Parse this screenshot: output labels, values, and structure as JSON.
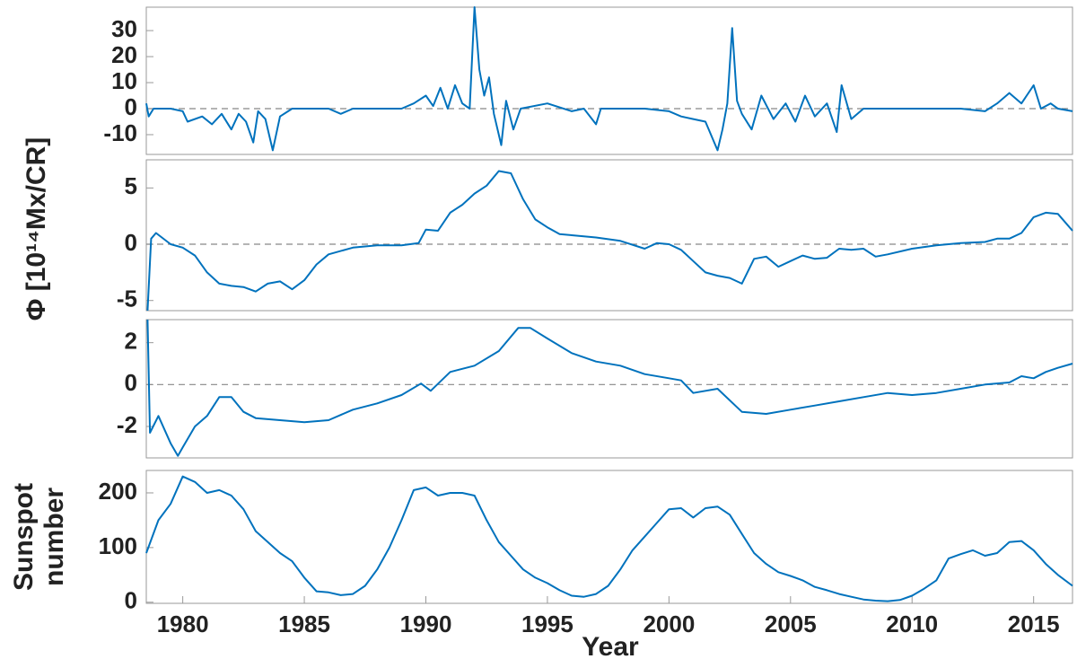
{
  "chart_data": [
    {
      "type": "line",
      "ylabel": "Φ [10¹⁴Mx/CR]",
      "hline": 0,
      "xlim": [
        1978.5,
        2016.6
      ],
      "ylim": [
        -17.6,
        39
      ],
      "yticks": [
        -10,
        0,
        10,
        20,
        30
      ],
      "x": [
        1978.5,
        1978.6,
        1978.8,
        1979.5,
        1980,
        1980.2,
        1980.8,
        1981.2,
        1981.6,
        1982,
        1982.3,
        1982.6,
        1982.9,
        1983.1,
        1983.4,
        1983.7,
        1984,
        1984.5,
        1986,
        1986.5,
        1987,
        1989,
        1989.5,
        1990,
        1990.3,
        1990.6,
        1990.9,
        1991.2,
        1991.5,
        1991.8,
        1992,
        1992.2,
        1992.4,
        1992.6,
        1992.8,
        1993.1,
        1993.3,
        1993.6,
        1993.9,
        1995,
        1996,
        1996.5,
        1997,
        1997.2,
        1999,
        2000,
        2000.5,
        2001,
        2001.5,
        2002,
        2002.2,
        2002.4,
        2002.6,
        2002.8,
        2003,
        2003.4,
        2003.8,
        2004.3,
        2004.8,
        2005.2,
        2005.6,
        2006,
        2006.5,
        2006.9,
        2007.1,
        2007.5,
        2008,
        2012,
        2013,
        2013.5,
        2014,
        2014.5,
        2015,
        2015.3,
        2015.7,
        2016,
        2016.6
      ],
      "series": [
        {
          "color": "#0072bd",
          "values": [
            2,
            -3,
            0,
            0,
            -1,
            -5,
            -3,
            -6,
            -2,
            -8,
            -2,
            -5,
            -13,
            -1,
            -4,
            -16,
            -3,
            0,
            0,
            -2,
            0,
            0,
            2,
            5,
            1,
            8,
            0,
            9,
            2,
            0,
            39,
            15,
            5,
            12,
            -2,
            -14,
            3,
            -8,
            0,
            2,
            -1,
            0,
            -6,
            0,
            0,
            -1,
            -3,
            -4,
            -5,
            -16,
            -8,
            2,
            31,
            3,
            -2,
            -8,
            5,
            -4,
            2,
            -5,
            5,
            -3,
            2,
            -9,
            9,
            -4,
            0,
            0,
            -1,
            2,
            6,
            2,
            9,
            0,
            2,
            0,
            -1
          ]
        }
      ]
    },
    {
      "type": "line",
      "hline": 0,
      "xlim": [
        1978.5,
        2016.6
      ],
      "ylim": [
        -5.9,
        7.5
      ],
      "yticks": [
        -5,
        0,
        5
      ],
      "x": [
        1978.55,
        1978.7,
        1978.9,
        1979.5,
        1980,
        1980.5,
        1981,
        1981.5,
        1982,
        1982.5,
        1983,
        1983.5,
        1984,
        1984.5,
        1985,
        1985.5,
        1986,
        1987,
        1988,
        1989,
        1989.7,
        1990,
        1990.5,
        1991,
        1991.5,
        1992,
        1992.5,
        1993,
        1993.5,
        1994,
        1994.5,
        1995,
        1995.5,
        1996,
        1997,
        1998,
        1999,
        1999.5,
        2000,
        2000.5,
        2001,
        2001.5,
        2002,
        2002.5,
        2003,
        2003.5,
        2004,
        2004.5,
        2005,
        2005.5,
        2006,
        2006.5,
        2007,
        2007.5,
        2008,
        2008.5,
        2009,
        2010,
        2011,
        2012,
        2013,
        2013.5,
        2014,
        2014.5,
        2015,
        2015.5,
        2016,
        2016.6
      ],
      "series": [
        {
          "color": "#0072bd",
          "values": [
            -5.9,
            0.5,
            1.0,
            0,
            -0.3,
            -1.0,
            -2.5,
            -3.5,
            -3.7,
            -3.8,
            -4.2,
            -3.5,
            -3.3,
            -4.0,
            -3.2,
            -1.8,
            -0.9,
            -0.3,
            -0.1,
            -0.1,
            0.1,
            1.3,
            1.2,
            2.8,
            3.5,
            4.5,
            5.2,
            6.5,
            6.3,
            4.0,
            2.2,
            1.5,
            0.9,
            0.8,
            0.6,
            0.3,
            -0.4,
            0.1,
            0,
            -0.5,
            -1.5,
            -2.5,
            -2.8,
            -3.0,
            -3.5,
            -1.3,
            -1.1,
            -2.0,
            -1.5,
            -1.0,
            -1.3,
            -1.2,
            -0.4,
            -0.5,
            -0.4,
            -1.1,
            -0.9,
            -0.4,
            -0.1,
            0.1,
            0.2,
            0.5,
            0.5,
            1.0,
            2.4,
            2.8,
            2.7,
            1.2
          ]
        }
      ]
    },
    {
      "type": "line",
      "hline": 0,
      "xlim": [
        1978.5,
        2016.6
      ],
      "ylim": [
        -3.5,
        3.1
      ],
      "yticks": [
        -2,
        0,
        2
      ],
      "x": [
        1978.55,
        1978.65,
        1979,
        1979.5,
        1979.8,
        1980,
        1980.5,
        1981,
        1981.5,
        1982,
        1982.5,
        1983,
        1984,
        1985,
        1986,
        1987,
        1988,
        1989,
        1989.8,
        1990.2,
        1991,
        1992,
        1993,
        1993.8,
        1994.3,
        1995,
        1996,
        1997,
        1998,
        1999,
        2000,
        2000.5,
        2001,
        2002,
        2003,
        2004,
        2005,
        2006,
        2007,
        2008,
        2009,
        2010,
        2011,
        2012,
        2013,
        2014,
        2014.5,
        2015,
        2015.5,
        2016,
        2016.6
      ],
      "series": [
        {
          "color": "#0072bd",
          "values": [
            3.1,
            -2.3,
            -1.5,
            -2.8,
            -3.4,
            -3.0,
            -2.0,
            -1.5,
            -0.6,
            -0.6,
            -1.3,
            -1.6,
            -1.7,
            -1.8,
            -1.7,
            -1.2,
            -0.9,
            -0.5,
            0.05,
            -0.3,
            0.6,
            0.9,
            1.6,
            2.7,
            2.7,
            2.2,
            1.5,
            1.1,
            0.9,
            0.5,
            0.3,
            0.2,
            -0.4,
            -0.2,
            -1.3,
            -1.4,
            -1.2,
            -1.0,
            -0.8,
            -0.6,
            -0.4,
            -0.5,
            -0.4,
            -0.2,
            0,
            0.1,
            0.4,
            0.3,
            0.6,
            0.8,
            1.0
          ]
        }
      ]
    },
    {
      "type": "line",
      "ylabel": [
        "Sunspot",
        "number"
      ],
      "xlabel": "Year",
      "xlim": [
        1978.5,
        2016.6
      ],
      "xticks": [
        1980,
        1985,
        1990,
        1995,
        2000,
        2005,
        2010,
        2015
      ],
      "ylim": [
        -2,
        241
      ],
      "yticks": [
        0,
        100,
        200
      ],
      "x": [
        1978.5,
        1979,
        1979.5,
        1980,
        1980.5,
        1981,
        1981.5,
        1982,
        1982.5,
        1983,
        1983.5,
        1984,
        1984.5,
        1985,
        1985.5,
        1986,
        1986.5,
        1987,
        1987.5,
        1988,
        1988.5,
        1989,
        1989.5,
        1990,
        1990.5,
        1991,
        1991.5,
        1992,
        1992.5,
        1993,
        1993.5,
        1994,
        1994.5,
        1995,
        1995.5,
        1996,
        1996.5,
        1997,
        1997.5,
        1998,
        1998.5,
        1999,
        1999.5,
        2000,
        2000.5,
        2001,
        2001.5,
        2002,
        2002.5,
        2003,
        2003.5,
        2004,
        2004.5,
        2005,
        2005.5,
        2006,
        2006.5,
        2007,
        2007.5,
        2008,
        2008.5,
        2009,
        2009.5,
        2010,
        2010.5,
        2011,
        2011.5,
        2012,
        2012.5,
        2013,
        2013.5,
        2014,
        2014.5,
        2015,
        2015.5,
        2016,
        2016.6
      ],
      "series": [
        {
          "color": "#0072bd",
          "values": [
            90,
            150,
            180,
            230,
            220,
            200,
            205,
            195,
            170,
            130,
            110,
            90,
            75,
            45,
            20,
            18,
            13,
            15,
            30,
            60,
            100,
            150,
            205,
            210,
            195,
            200,
            200,
            195,
            150,
            110,
            85,
            60,
            45,
            35,
            22,
            12,
            10,
            15,
            30,
            60,
            95,
            120,
            145,
            170,
            172,
            155,
            172,
            175,
            160,
            125,
            90,
            70,
            55,
            48,
            40,
            28,
            22,
            15,
            10,
            5,
            3,
            2,
            4,
            12,
            25,
            40,
            80,
            88,
            95,
            85,
            90,
            110,
            112,
            95,
            70,
            50,
            30
          ]
        }
      ]
    }
  ]
}
